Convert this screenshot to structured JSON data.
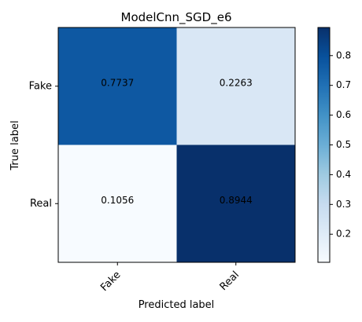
{
  "chart_data": {
    "type": "heatmap",
    "title": "ModelCnn_SGD_e6",
    "xlabel": "Predicted label",
    "ylabel": "True label",
    "x_categories": [
      "Fake",
      "Real"
    ],
    "y_categories": [
      "Fake",
      "Real"
    ],
    "values": [
      [
        0.7737,
        0.2263
      ],
      [
        0.1056,
        0.8944
      ]
    ],
    "cell_labels": [
      [
        "0.7737",
        "0.2263"
      ],
      [
        "0.1056",
        "0.8944"
      ]
    ],
    "colormap": "Blues",
    "colorbar": {
      "min": 0.1056,
      "max": 0.8944,
      "ticks": [
        0.2,
        0.3,
        0.4,
        0.5,
        0.6,
        0.7,
        0.8
      ],
      "tick_labels": [
        "0.2",
        "0.3",
        "0.4",
        "0.5",
        "0.6",
        "0.7",
        "0.8"
      ]
    },
    "x_tick_rotation_deg": 45,
    "grid": false,
    "text_color": "#000000",
    "axis_color": "#000000"
  }
}
